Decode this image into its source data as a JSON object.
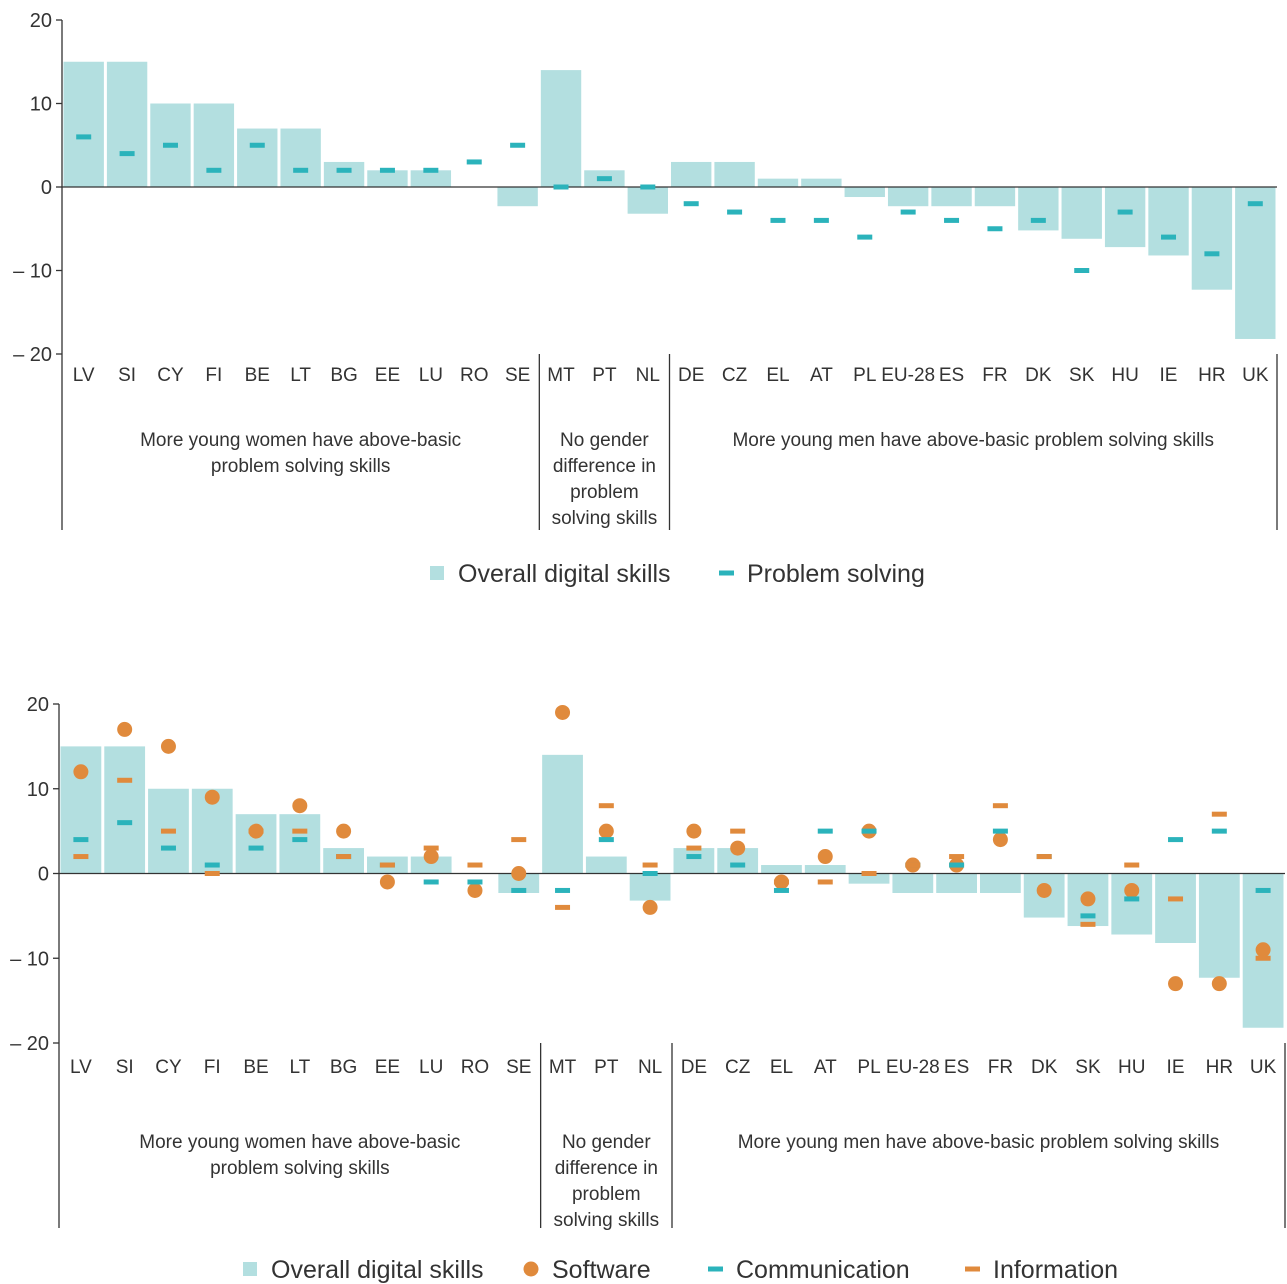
{
  "chart_data": [
    {
      "type": "bar",
      "categories": [
        "LV",
        "SI",
        "CY",
        "FI",
        "BE",
        "LT",
        "BG",
        "EE",
        "LU",
        "RO",
        "SE",
        "MT",
        "PT",
        "NL",
        "DE",
        "CZ",
        "EL",
        "AT",
        "PL",
        "EU-28",
        "ES",
        "FR",
        "DK",
        "SK",
        "HU",
        "IE",
        "HR",
        "UK"
      ],
      "yticks": [
        "20",
        "10",
        "0",
        "– 10",
        "– 20"
      ],
      "ylim": [
        -20,
        20
      ],
      "series": [
        {
          "name": "Overall digital skills",
          "kind": "bar",
          "color": "#b3dfe0",
          "values": [
            15,
            15,
            10,
            10,
            7,
            7,
            3,
            2,
            2,
            0,
            -2.3,
            14,
            2,
            -3.2,
            3,
            3,
            1,
            1,
            -1.2,
            -2.3,
            -2.3,
            -2.3,
            -5.2,
            -6.2,
            -7.2,
            -8.2,
            -12.3,
            -18.2
          ]
        },
        {
          "name": "Problem solving",
          "kind": "dash",
          "color": "#2bb3bb",
          "values": [
            6,
            4,
            5,
            2,
            5,
            2,
            2,
            2,
            2,
            3,
            5,
            0,
            1,
            0,
            -2,
            -3,
            -4,
            -4,
            -6,
            -3,
            -4,
            -5,
            -4,
            -10,
            -3,
            -6,
            -8,
            -2
          ]
        }
      ],
      "groups": [
        {
          "label": "More young women have above-basic problem solving skills",
          "lines": [
            "More young women have above-basic",
            "problem solving skills"
          ]
        },
        {
          "label": "No gender difference in problem solving skills",
          "lines": [
            "No gender",
            "difference in",
            "problem",
            "solving skills"
          ]
        },
        {
          "label": "More young men have above-basic problem solving skills",
          "lines": [
            "More young men have above-basic problem solving skills"
          ]
        }
      ],
      "legend": [
        "Overall digital skills",
        "Problem solving"
      ]
    },
    {
      "type": "bar",
      "categories": [
        "LV",
        "SI",
        "CY",
        "FI",
        "BE",
        "LT",
        "BG",
        "EE",
        "LU",
        "RO",
        "SE",
        "MT",
        "PT",
        "NL",
        "DE",
        "CZ",
        "EL",
        "AT",
        "PL",
        "EU-28",
        "ES",
        "FR",
        "DK",
        "SK",
        "HU",
        "IE",
        "HR",
        "UK"
      ],
      "yticks": [
        "20",
        "10",
        "0",
        "– 10",
        "– 20"
      ],
      "ylim": [
        -20,
        20
      ],
      "series": [
        {
          "name": "Overall digital skills",
          "kind": "bar",
          "color": "#b3dfe0",
          "values": [
            15,
            15,
            10,
            10,
            7,
            7,
            3,
            2,
            2,
            0,
            -2.3,
            14,
            2,
            -3.2,
            3,
            3,
            1,
            1,
            -1.2,
            -2.3,
            -2.3,
            -2.3,
            -5.2,
            -6.2,
            -7.2,
            -8.2,
            -12.3,
            -18.2
          ]
        },
        {
          "name": "Software",
          "kind": "dot",
          "color": "#e08a3c",
          "values": [
            12,
            17,
            15,
            9,
            5,
            8,
            5,
            -1,
            2,
            -2,
            0,
            19,
            5,
            -4,
            5,
            3,
            -1,
            2,
            5,
            1,
            1,
            4,
            -2,
            -3,
            -2,
            -13,
            -13,
            -9
          ]
        },
        {
          "name": "Communication",
          "kind": "dash",
          "color": "#2bb3bb",
          "values": [
            4,
            6,
            3,
            1,
            3,
            4,
            2,
            1,
            -1,
            -1,
            -2,
            -2,
            4,
            0,
            2,
            1,
            -2,
            5,
            5,
            1,
            1,
            5,
            2,
            -5,
            -3,
            4,
            5,
            -2
          ]
        },
        {
          "name": "Information",
          "kind": "dash",
          "color": "#e08a3c",
          "values": [
            2,
            11,
            5,
            0,
            5,
            5,
            2,
            1,
            3,
            1,
            4,
            -4,
            8,
            1,
            3,
            5,
            -1,
            -1,
            0,
            1,
            2,
            8,
            2,
            -6,
            1,
            -3,
            7,
            -10
          ]
        }
      ],
      "groups": [
        {
          "label": "More young women have above-basic problem solving skills",
          "lines": [
            "More young women have above-basic",
            "problem solving skills"
          ]
        },
        {
          "label": "No gender difference in problem solving skills",
          "lines": [
            "No gender",
            "difference in",
            "problem",
            "solving skills"
          ]
        },
        {
          "label": "More young men have above-basic problem solving skills",
          "lines": [
            "More young men have above-basic problem solving skills"
          ]
        }
      ],
      "legend": [
        "Overall digital skills",
        "Software",
        "Communication",
        "Information"
      ]
    }
  ]
}
